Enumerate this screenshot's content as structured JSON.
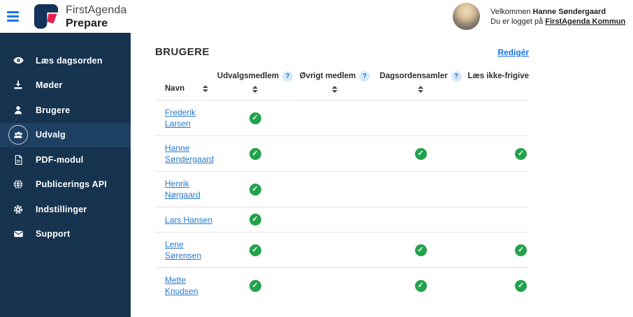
{
  "header": {
    "brand_line1": "FirstAgenda",
    "brand_line2": "Prepare",
    "welcome_prefix": "Velkommen ",
    "welcome_name": "Hanne Søndergaard",
    "login_prefix": "Du er logget på ",
    "login_org": "FirstAgenda Kommun"
  },
  "sidebar": {
    "items": [
      {
        "label": "Læs dagsorden",
        "icon": "eye-icon",
        "active": false
      },
      {
        "label": "Møder",
        "icon": "download-icon",
        "active": false
      },
      {
        "label": "Brugere",
        "icon": "user-icon",
        "active": false
      },
      {
        "label": "Udvalg",
        "icon": "group-icon",
        "active": true
      },
      {
        "label": "PDF-modul",
        "icon": "pdf-icon",
        "active": false
      },
      {
        "label": "Publicerings API",
        "icon": "globe-icon",
        "active": false
      },
      {
        "label": "Indstillinger",
        "icon": "gear-icon",
        "active": false
      },
      {
        "label": "Support",
        "icon": "mail-icon",
        "active": false
      }
    ]
  },
  "main": {
    "title": "BRUGERE",
    "edit_link": "Redigér",
    "table": {
      "help_glyph": "?",
      "check_glyph": "✓",
      "columns": [
        {
          "label": "Navn",
          "sortable": true,
          "help": false
        },
        {
          "label": "Udvalgsmedlem",
          "sortable": true,
          "help": true
        },
        {
          "label": "Øvrigt medlem",
          "sortable": true,
          "help": true
        },
        {
          "label": "Dagsordensamler",
          "sortable": true,
          "help": true
        },
        {
          "label": "Læs ikke-frigive",
          "sortable": false,
          "help": false
        }
      ],
      "rows": [
        {
          "name": "Frederik Larsen",
          "checks": [
            true,
            false,
            false,
            false
          ]
        },
        {
          "name": "Hanne Søndergaard",
          "checks": [
            true,
            false,
            true,
            true
          ]
        },
        {
          "name": "Henrik Nørgaard",
          "checks": [
            true,
            false,
            false,
            false
          ]
        },
        {
          "name": "Lars Hansen",
          "checks": [
            true,
            false,
            false,
            false
          ]
        },
        {
          "name": "Lene Sørensen",
          "checks": [
            true,
            false,
            true,
            true
          ]
        },
        {
          "name": "Mette Knudsen",
          "checks": [
            true,
            false,
            true,
            true
          ]
        }
      ]
    }
  },
  "colors": {
    "sidebar_bg": "#16334F",
    "sidebar_active_bg": "#1E4063",
    "accent_blue": "#1A73E8",
    "link_blue": "#2779CB",
    "check_green": "#22A24C",
    "logo_navy": "#14325A",
    "logo_red": "#E5204C",
    "divider": "#e4e4e4"
  }
}
